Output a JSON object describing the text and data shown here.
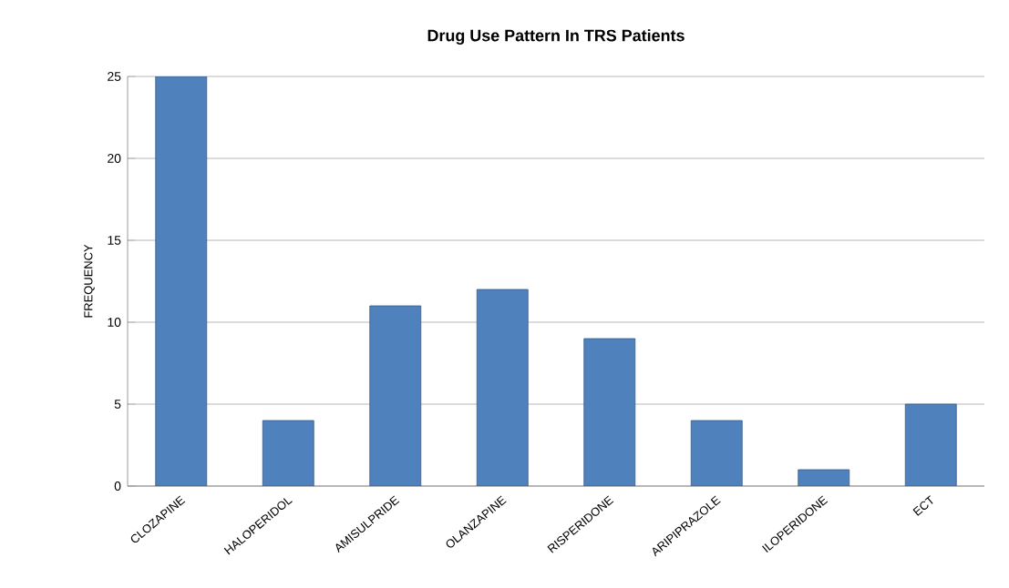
{
  "chart_data": {
    "type": "bar",
    "title": "Drug Use Pattern In TRS Patients",
    "ylabel": "FREQUENCY",
    "categories": [
      "CLOZAPINE",
      "HALOPERIDOL",
      "AMISULPRIDE",
      "OLANZAPINE",
      "RISPERIDONE",
      "ARIPIPRAZOLE",
      "ILOPERIDONE",
      "ECT"
    ],
    "values": [
      25,
      4,
      11,
      12,
      9,
      4,
      1,
      5
    ],
    "color": "#4f81bd",
    "ylim": [
      0,
      25
    ],
    "yticks": [
      0,
      5,
      10,
      15,
      20,
      25
    ],
    "grid": "y"
  }
}
